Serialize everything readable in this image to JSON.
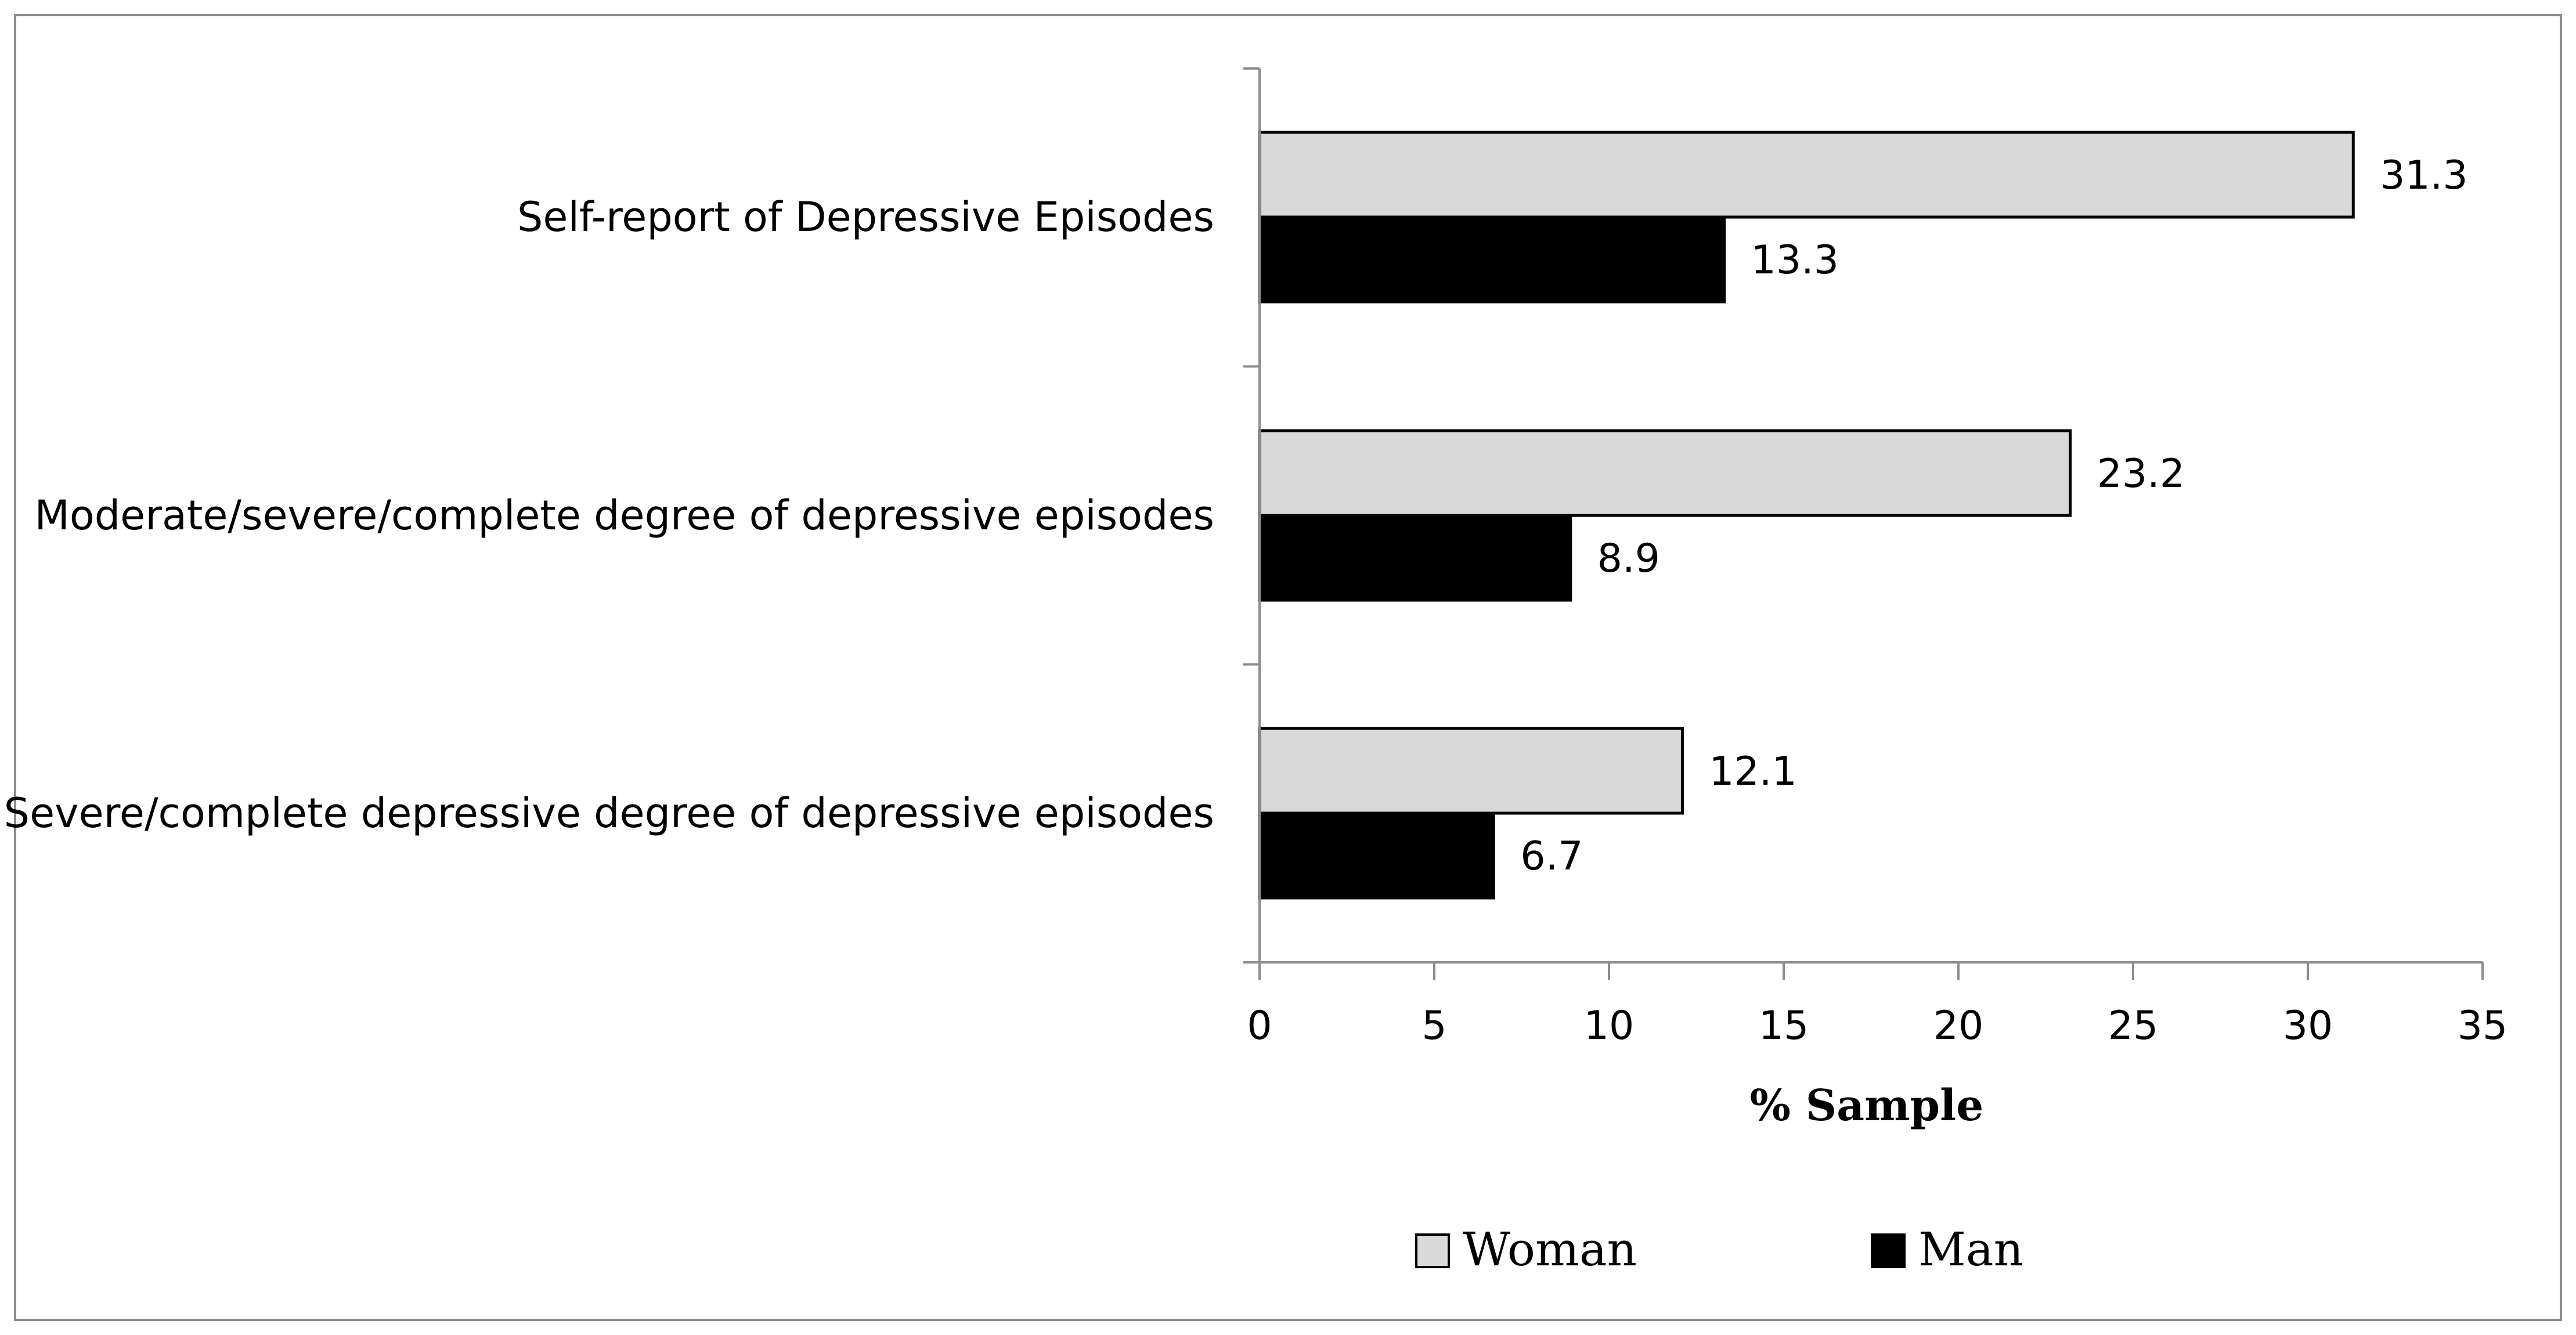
{
  "chart_data": {
    "type": "bar",
    "orientation": "horizontal",
    "title": "",
    "xlabel": "% Sample",
    "ylabel": "",
    "xlim": [
      0,
      35
    ],
    "xticks": [
      0,
      5,
      10,
      15,
      20,
      25,
      30,
      35
    ],
    "xtick_labels": [
      "0",
      "5",
      "10",
      "15",
      "20",
      "25",
      "30",
      "35"
    ],
    "grid": false,
    "legend_position": "bottom",
    "categories": [
      "Self-report of Depressive Episodes",
      "Moderate/severe/complete degree of depressive episodes",
      "Severe/complete depressive degree of depressive episodes"
    ],
    "series": [
      {
        "name": "Woman",
        "color": "#d9d9d9",
        "values": [
          31.3,
          23.2,
          12.1
        ],
        "labels": [
          "31.3",
          "23.2",
          "12.1"
        ]
      },
      {
        "name": "Man",
        "color": "#000000",
        "values": [
          13.3,
          8.9,
          6.7
        ],
        "labels": [
          "13.3",
          "8.9",
          "6.7"
        ]
      }
    ]
  }
}
